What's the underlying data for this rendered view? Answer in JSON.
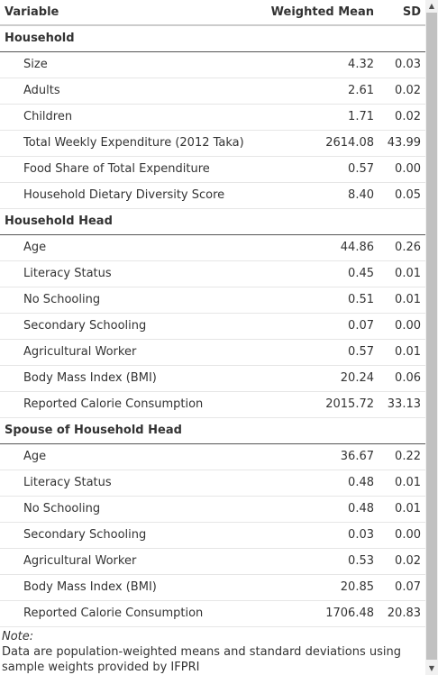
{
  "header": {
    "variable": "Variable",
    "weighted_mean": "Weighted Mean",
    "sd": "SD"
  },
  "groups": [
    {
      "title": "Household",
      "rows": [
        {
          "label": "Size",
          "mean": "4.32",
          "sd": "0.03"
        },
        {
          "label": "Adults",
          "mean": "2.61",
          "sd": "0.02"
        },
        {
          "label": "Children",
          "mean": "1.71",
          "sd": "0.02"
        },
        {
          "label": "Total Weekly Expenditure (2012 Taka)",
          "mean": "2614.08",
          "sd": "43.99"
        },
        {
          "label": "Food Share of Total Expenditure",
          "mean": "0.57",
          "sd": "0.00"
        },
        {
          "label": "Household Dietary Diversity Score",
          "mean": "8.40",
          "sd": "0.05"
        }
      ]
    },
    {
      "title": "Household Head",
      "rows": [
        {
          "label": "Age",
          "mean": "44.86",
          "sd": "0.26"
        },
        {
          "label": "Literacy Status",
          "mean": "0.45",
          "sd": "0.01"
        },
        {
          "label": "No Schooling",
          "mean": "0.51",
          "sd": "0.01"
        },
        {
          "label": "Secondary Schooling",
          "mean": "0.07",
          "sd": "0.00"
        },
        {
          "label": "Agricultural Worker",
          "mean": "0.57",
          "sd": "0.01"
        },
        {
          "label": "Body Mass Index (BMI)",
          "mean": "20.24",
          "sd": "0.06"
        },
        {
          "label": "Reported Calorie Consumption",
          "mean": "2015.72",
          "sd": "33.13"
        }
      ]
    },
    {
      "title": "Spouse of Household Head",
      "rows": [
        {
          "label": "Age",
          "mean": "36.67",
          "sd": "0.22"
        },
        {
          "label": "Literacy Status",
          "mean": "0.48",
          "sd": "0.01"
        },
        {
          "label": "No Schooling",
          "mean": "0.48",
          "sd": "0.01"
        },
        {
          "label": "Secondary Schooling",
          "mean": "0.03",
          "sd": "0.00"
        },
        {
          "label": "Agricultural Worker",
          "mean": "0.53",
          "sd": "0.02"
        },
        {
          "label": "Body Mass Index (BMI)",
          "mean": "20.85",
          "sd": "0.07"
        },
        {
          "label": "Reported Calorie Consumption",
          "mean": "1706.48",
          "sd": "20.83"
        }
      ]
    }
  ],
  "note": {
    "title": "Note:",
    "text": "Data are population-weighted means and standard deviations using sample weights provided by IFPRI"
  }
}
